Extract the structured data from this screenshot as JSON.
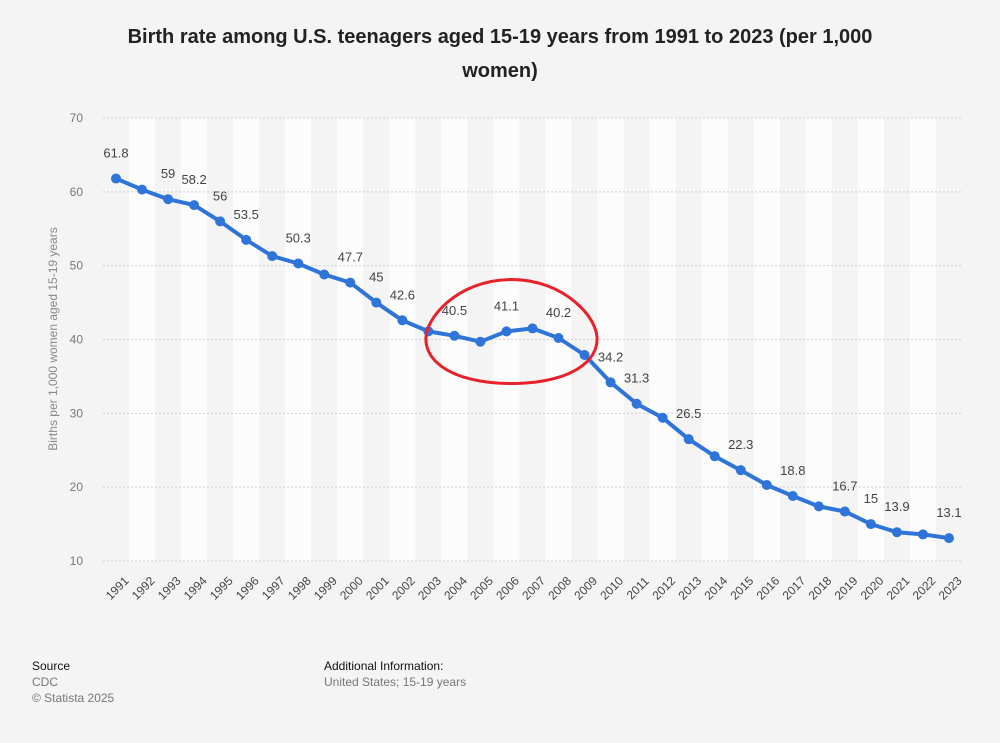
{
  "chart_data": {
    "type": "line",
    "title": "Birth rate among U.S. teenagers aged 15-19 years from 1991 to 2023 (per 1,000 women)",
    "xlabel": "",
    "ylabel": "Births per 1,000 women aged 15-19 years",
    "ylim": [
      10,
      70
    ],
    "yticks": [
      10,
      20,
      30,
      40,
      50,
      60,
      70
    ],
    "grid": true,
    "categories": [
      "1991",
      "1992",
      "1993",
      "1994",
      "1995",
      "1996",
      "1997",
      "1998",
      "1999",
      "2000",
      "2001",
      "2002",
      "2003",
      "2004",
      "2005",
      "2006",
      "2007",
      "2008",
      "2009",
      "2010",
      "2011",
      "2012",
      "2013",
      "2014",
      "2015",
      "2016",
      "2017",
      "2018",
      "2019",
      "2020",
      "2021",
      "2022",
      "2023"
    ],
    "series": [
      {
        "color": "#2f74d8",
        "values": [
          61.8,
          60.3,
          59,
          58.2,
          56,
          53.5,
          51.3,
          50.3,
          48.8,
          47.7,
          45,
          42.6,
          41.1,
          40.5,
          39.7,
          41.1,
          41.5,
          40.2,
          37.9,
          34.2,
          31.3,
          29.4,
          26.5,
          24.2,
          22.3,
          20.3,
          18.8,
          17.4,
          16.7,
          15,
          13.9,
          13.6,
          13.1
        ]
      }
    ],
    "data_labels": [
      {
        "category": "1991",
        "text": "61.8"
      },
      {
        "category": "1993",
        "text": "59"
      },
      {
        "category": "1994",
        "text": "58.2"
      },
      {
        "category": "1995",
        "text": "56"
      },
      {
        "category": "1996",
        "text": "53.5"
      },
      {
        "category": "1998",
        "text": "50.3"
      },
      {
        "category": "2000",
        "text": "47.7"
      },
      {
        "category": "2001",
        "text": "45"
      },
      {
        "category": "2002",
        "text": "42.6"
      },
      {
        "category": "2004",
        "text": "40.5"
      },
      {
        "category": "2006",
        "text": "41.1"
      },
      {
        "category": "2008",
        "text": "40.2"
      },
      {
        "category": "2010",
        "text": "34.2"
      },
      {
        "category": "2011",
        "text": "31.3"
      },
      {
        "category": "2013",
        "text": "26.5"
      },
      {
        "category": "2015",
        "text": "22.3"
      },
      {
        "category": "2017",
        "text": "18.8"
      },
      {
        "category": "2019",
        "text": "16.7"
      },
      {
        "category": "2020",
        "text": "15"
      },
      {
        "category": "2021",
        "text": "13.9"
      },
      {
        "category": "2023",
        "text": "13.1"
      }
    ],
    "annotation": {
      "shape": "hand-drawn circle",
      "color": "#e8222a",
      "from": "2004",
      "to": "2009"
    }
  },
  "footer": {
    "source_heading": "Source",
    "source_name": "CDC",
    "copyright": "© Statista 2025",
    "info_heading": "Additional Information:",
    "info_text": "United States; 15-19 years"
  }
}
